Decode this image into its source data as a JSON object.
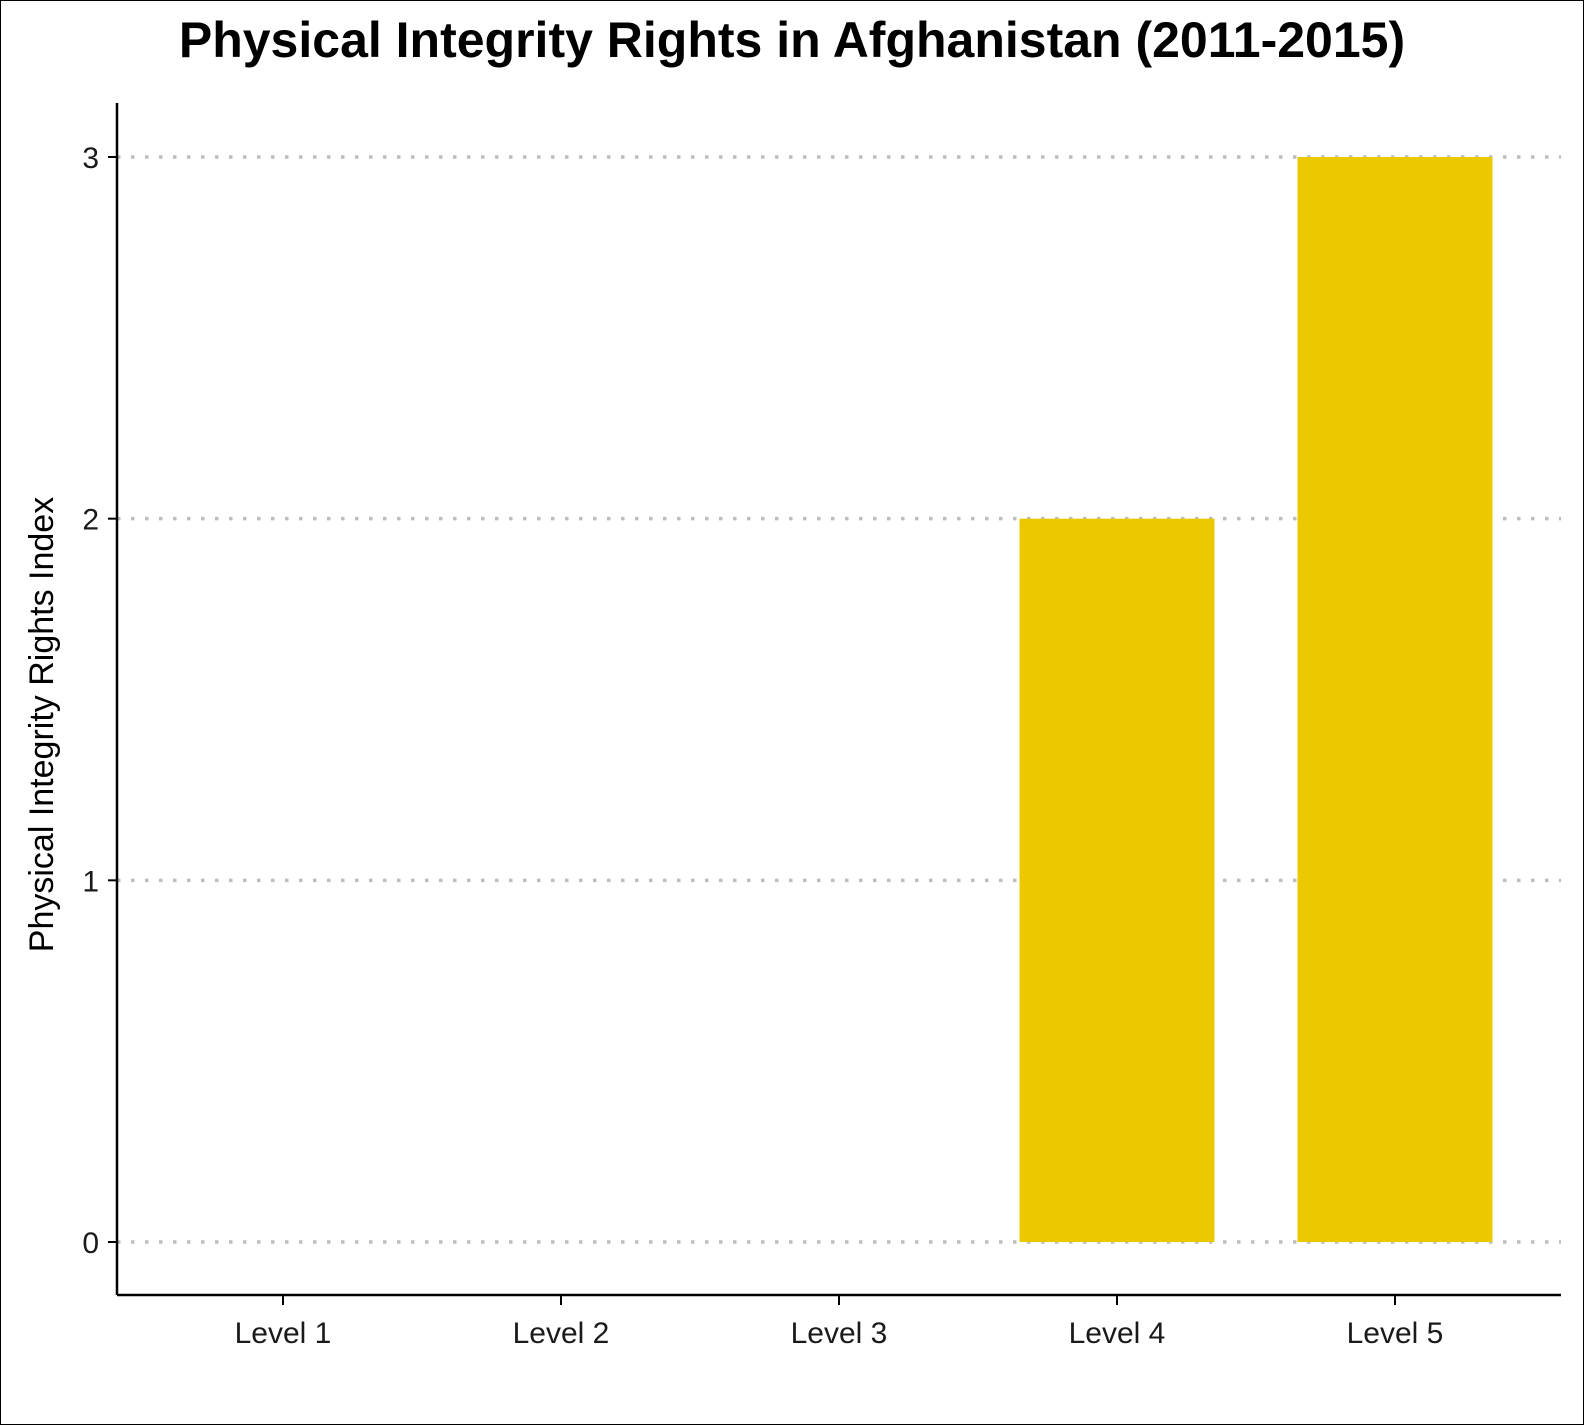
{
  "chart_data": {
    "type": "bar",
    "title": "Physical Integrity Rights in Afghanistan (2011-2015)",
    "xlabel": "",
    "ylabel": "Physical Integrity Rights Index",
    "categories": [
      "Level 1",
      "Level 2",
      "Level 3",
      "Level 4",
      "Level 5"
    ],
    "values": [
      0,
      0,
      0,
      2,
      3
    ],
    "ylim": [
      -0.15,
      3.15
    ],
    "yticks": [
      0,
      1,
      2,
      3
    ],
    "grid": "horizontal dotted",
    "legend": "none",
    "bar_color": "#EBC800",
    "grid_color": "#bdbdbd"
  }
}
